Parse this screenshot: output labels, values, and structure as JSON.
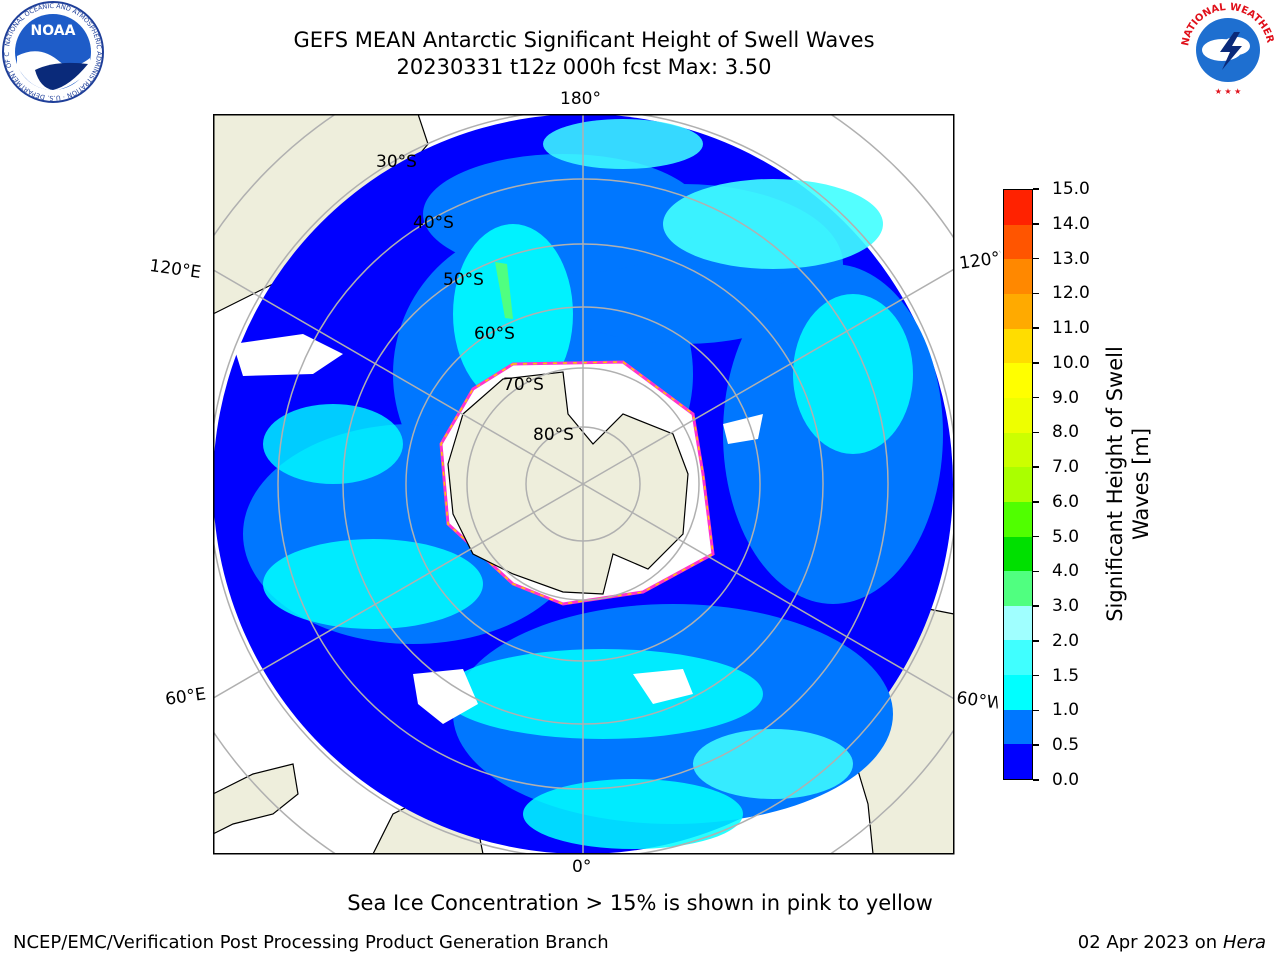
{
  "header": {
    "title_line1": "GEFS MEAN Antarctic Significant Height of Swell Waves",
    "title_line2": "20230331 t12z 000h fcst   Max: 3.50"
  },
  "logos": {
    "noaa_text": "NOAA",
    "noaa_ring_text": "NATIONAL OCEANIC AND ATMOSPHERIC ADMINISTRATION · U.S. DEPARTMENT OF COMMERCE",
    "nws_ring_text": "NATIONAL WEATHER SERVICE"
  },
  "map": {
    "projection": "south-polar-stereographic",
    "longitude_labels": {
      "top": "180°",
      "left": "120°E",
      "right": "120°W",
      "lower_left": "60°E",
      "lower_right": "60°W",
      "bottom": "0°"
    },
    "latitude_labels": [
      "30°S",
      "40°S",
      "50°S",
      "60°S",
      "70°S",
      "80°S"
    ],
    "colors": {
      "land": "#eeeedc",
      "ice_edge_pink": "#ff33cc",
      "ice_edge_yellow": "#ffcc00",
      "gridline": "#b0b0b0"
    }
  },
  "colorbar": {
    "label_line1": "Significant Height of Swell",
    "label_line2": "Waves [m]",
    "ticks": [
      "0.0",
      "0.5",
      "1.0",
      "1.5",
      "2.0",
      "3.0",
      "4.0",
      "5.0",
      "6.0",
      "7.0",
      "8.0",
      "9.0",
      "10.0",
      "11.0",
      "12.0",
      "13.0",
      "14.0",
      "15.0"
    ],
    "colors": [
      "#0000ff",
      "#0077ff",
      "#00ffff",
      "#40ffff",
      "#a0ffff",
      "#50ff80",
      "#00e000",
      "#50ff00",
      "#aaff00",
      "#ccff00",
      "#eeff00",
      "#ffff00",
      "#ffdd00",
      "#ffaa00",
      "#ff8800",
      "#ff5500",
      "#ff2200"
    ]
  },
  "caption": "Sea Ice Concentration > 15% is shown in pink to yellow",
  "footer": {
    "left": "NCEP/EMC/Verification Post Processing Product Generation Branch",
    "right_date": "02 Apr 2023 on",
    "right_host": "Hera"
  }
}
